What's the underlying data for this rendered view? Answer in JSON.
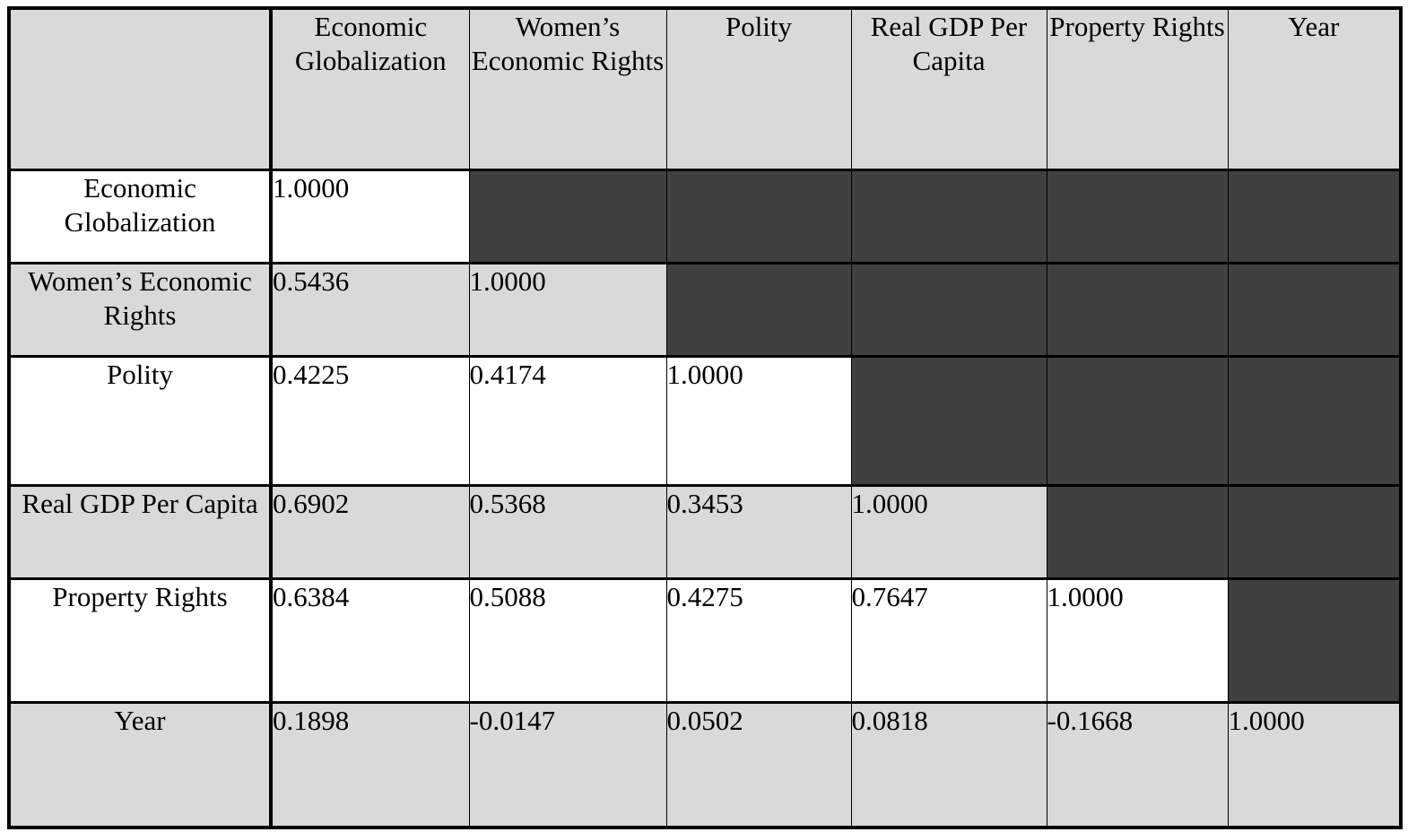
{
  "table": {
    "columns": [
      "Economic Globalization",
      "Women’s Economic Rights",
      "Polity",
      "Real GDP Per Capita",
      "Property Rights",
      "Year"
    ],
    "rows": [
      {
        "label": "Economic Globalization",
        "values": [
          "1.0000",
          "",
          "",
          "",
          "",
          ""
        ]
      },
      {
        "label": "Women’s Economic Rights",
        "values": [
          "0.5436",
          "1.0000",
          "",
          "",
          "",
          ""
        ]
      },
      {
        "label": "Polity",
        "values": [
          "0.4225",
          "0.4174",
          "1.0000",
          "",
          "",
          ""
        ]
      },
      {
        "label": "Real GDP Per Capita",
        "values": [
          "0.6902",
          "0.5368",
          "0.3453",
          "1.0000",
          "",
          ""
        ]
      },
      {
        "label": "Property Rights",
        "values": [
          "0.6384",
          "0.5088",
          "0.4275",
          "0.7647",
          "1.0000",
          ""
        ]
      },
      {
        "label": "Year",
        "values": [
          "0.1898",
          "-0.0147",
          "0.0502",
          "0.0818",
          "-0.1668",
          "1.0000"
        ]
      }
    ]
  },
  "colors": {
    "header_fill": "#d9d9d9",
    "masked_fill": "#404040",
    "border": "#000000"
  }
}
